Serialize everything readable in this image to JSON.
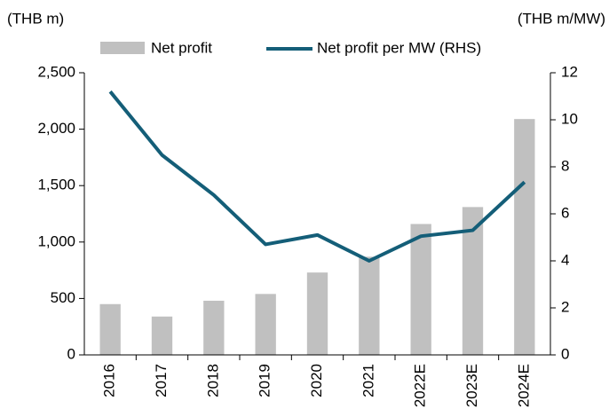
{
  "chart_data": {
    "type": "bar_line",
    "y_label": "(THB m)",
    "y2_label": "(THB m/MW)",
    "categories": [
      "2016",
      "2017",
      "2018",
      "2019",
      "2020",
      "2021",
      "2022E",
      "2023E",
      "2024E"
    ],
    "series": [
      {
        "name": "Net profit",
        "type": "bar",
        "color": "#c0c0c0",
        "values": [
          450,
          340,
          480,
          540,
          730,
          870,
          1160,
          1310,
          2090
        ]
      },
      {
        "name": "Net profit per MW (RHS)",
        "type": "line",
        "axis": "y2",
        "color": "#145e78",
        "values": [
          11.2,
          8.5,
          6.8,
          4.7,
          5.1,
          4.0,
          5.05,
          5.3,
          7.35
        ]
      }
    ],
    "ylim": [
      0,
      2500
    ],
    "yticks": [
      0,
      500,
      {
        "value": 1000,
        "label": "1,000"
      },
      {
        "value": 1500,
        "label": "1,500"
      },
      {
        "value": 2000,
        "label": "2,000"
      },
      {
        "value": 2500,
        "label": "2,500"
      }
    ],
    "y2lim": [
      0,
      12
    ],
    "y2ticks": [
      0,
      2,
      4,
      6,
      8,
      10,
      12
    ]
  }
}
